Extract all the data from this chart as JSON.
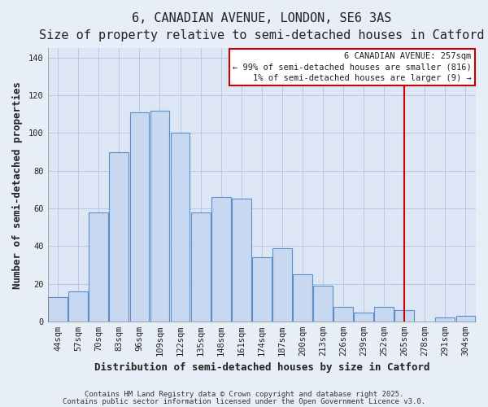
{
  "title": "6, CANADIAN AVENUE, LONDON, SE6 3AS",
  "subtitle": "Size of property relative to semi-detached houses in Catford",
  "xlabel": "Distribution of semi-detached houses by size in Catford",
  "ylabel": "Number of semi-detached properties",
  "bar_labels": [
    "44sqm",
    "57sqm",
    "70sqm",
    "83sqm",
    "96sqm",
    "109sqm",
    "122sqm",
    "135sqm",
    "148sqm",
    "161sqm",
    "174sqm",
    "187sqm",
    "200sqm",
    "213sqm",
    "226sqm",
    "239sqm",
    "252sqm",
    "265sqm",
    "278sqm",
    "291sqm",
    "304sqm"
  ],
  "bar_values": [
    13,
    16,
    58,
    90,
    111,
    112,
    100,
    58,
    66,
    65,
    34,
    39,
    25,
    19,
    8,
    5,
    8,
    6,
    0,
    2,
    3
  ],
  "bar_color": "#c8d8f0",
  "bar_edge_color": "#5b8fc9",
  "ylim": [
    0,
    145
  ],
  "yticks": [
    0,
    20,
    40,
    60,
    80,
    100,
    120,
    140
  ],
  "vline_x": 17.0,
  "vline_color": "#cc0000",
  "annotation_title": "6 CANADIAN AVENUE: 257sqm",
  "annotation_line1": "← 99% of semi-detached houses are smaller (816)",
  "annotation_line2": "1% of semi-detached houses are larger (9) →",
  "footer_line1": "Contains HM Land Registry data © Crown copyright and database right 2025.",
  "footer_line2": "Contains public sector information licensed under the Open Government Licence v3.0.",
  "fig_bg_color": "#e8eef8",
  "plot_bg_color": "#dde6f5",
  "grid_color": "#b8c8e0",
  "title_fontsize": 11,
  "subtitle_fontsize": 9.5,
  "axis_label_fontsize": 9,
  "tick_fontsize": 7.5,
  "footer_fontsize": 6.5,
  "annotation_fontsize": 7.5
}
